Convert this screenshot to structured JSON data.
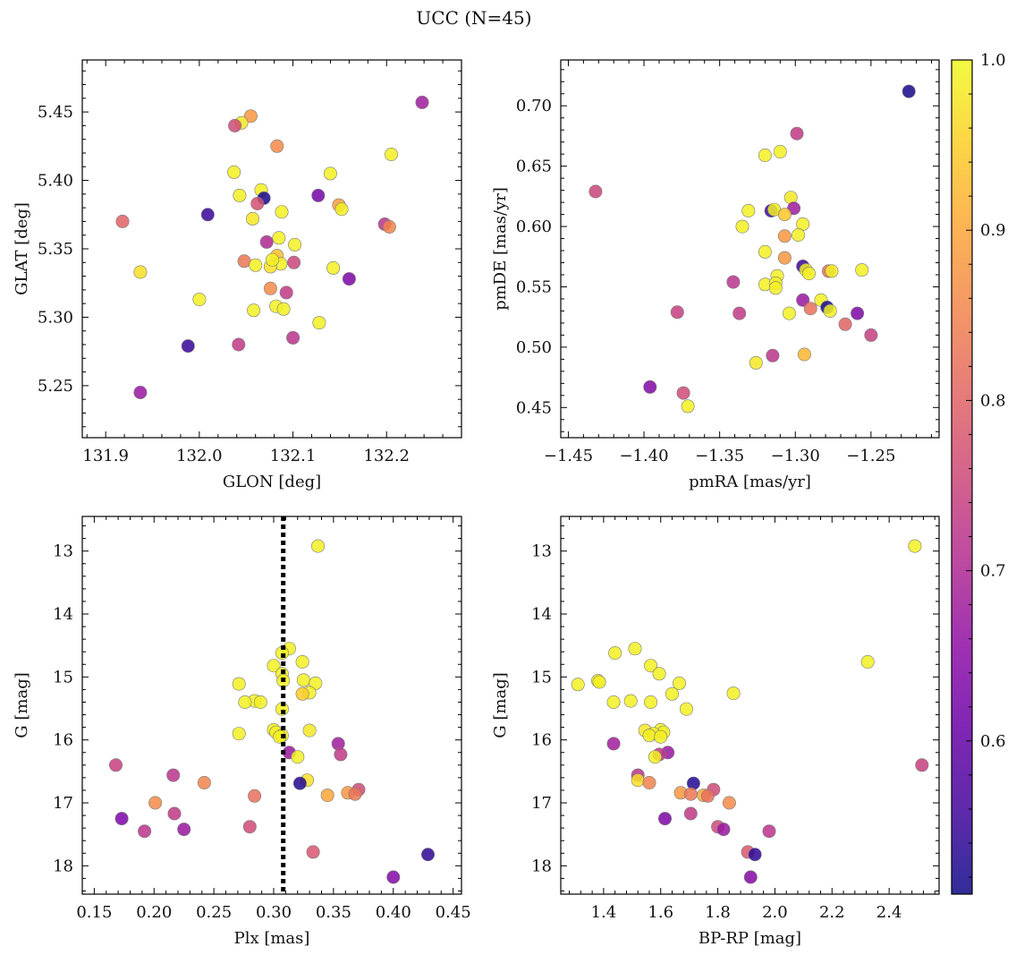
{
  "title": "UCC (N=45)",
  "colorbar": {
    "range": [
      0.51,
      1.0
    ],
    "ticks": [
      0.6,
      0.7,
      0.8,
      0.9,
      1.0
    ],
    "tick_labels": [
      "0.6",
      "0.7",
      "0.8",
      "0.9",
      "1.0"
    ],
    "colormap": "plasma"
  },
  "chart_data": [
    {
      "type": "scatter",
      "xlabel": "GLON [deg]",
      "ylabel": "GLAT [deg]",
      "xlim": [
        131.875,
        132.28
      ],
      "ylim": [
        5.212,
        5.488
      ],
      "xticks": [
        131.9,
        132.0,
        132.1,
        132.2
      ],
      "xtick_labels": [
        "131.9",
        "132.0",
        "132.1",
        "132.2"
      ],
      "yticks": [
        5.25,
        5.3,
        5.35,
        5.4,
        5.45
      ],
      "ytick_labels": [
        "5.25",
        "5.30",
        "5.35",
        "5.40",
        "5.45"
      ],
      "points": [
        {
          "x": 132.238,
          "y": 5.457,
          "c": 0.68
        },
        {
          "x": 132.055,
          "y": 5.447,
          "c": 0.88
        },
        {
          "x": 132.045,
          "y": 5.442,
          "c": 0.98
        },
        {
          "x": 132.038,
          "y": 5.44,
          "c": 0.76
        },
        {
          "x": 132.083,
          "y": 5.425,
          "c": 0.86
        },
        {
          "x": 132.205,
          "y": 5.419,
          "c": 0.99
        },
        {
          "x": 132.037,
          "y": 5.406,
          "c": 0.99
        },
        {
          "x": 132.14,
          "y": 5.405,
          "c": 0.99
        },
        {
          "x": 132.066,
          "y": 5.393,
          "c": 0.99
        },
        {
          "x": 132.043,
          "y": 5.389,
          "c": 0.99
        },
        {
          "x": 132.069,
          "y": 5.387,
          "c": 0.52
        },
        {
          "x": 132.127,
          "y": 5.389,
          "c": 0.62
        },
        {
          "x": 132.149,
          "y": 5.382,
          "c": 0.89
        },
        {
          "x": 132.152,
          "y": 5.379,
          "c": 0.99
        },
        {
          "x": 132.088,
          "y": 5.377,
          "c": 0.99
        },
        {
          "x": 132.009,
          "y": 5.375,
          "c": 0.55
        },
        {
          "x": 132.057,
          "y": 5.372,
          "c": 0.98
        },
        {
          "x": 131.918,
          "y": 5.37,
          "c": 0.8
        },
        {
          "x": 132.198,
          "y": 5.368,
          "c": 0.72
        },
        {
          "x": 132.203,
          "y": 5.366,
          "c": 0.85
        },
        {
          "x": 132.085,
          "y": 5.358,
          "c": 0.99
        },
        {
          "x": 132.072,
          "y": 5.355,
          "c": 0.7
        },
        {
          "x": 132.102,
          "y": 5.353,
          "c": 0.99
        },
        {
          "x": 132.083,
          "y": 5.345,
          "c": 0.93
        },
        {
          "x": 132.048,
          "y": 5.341,
          "c": 0.83
        },
        {
          "x": 132.087,
          "y": 5.339,
          "c": 0.99
        },
        {
          "x": 132.06,
          "y": 5.338,
          "c": 0.99
        },
        {
          "x": 132.076,
          "y": 5.337,
          "c": 0.97
        },
        {
          "x": 132.101,
          "y": 5.34,
          "c": 0.75
        },
        {
          "x": 132.143,
          "y": 5.336,
          "c": 0.99
        },
        {
          "x": 131.937,
          "y": 5.333,
          "c": 0.97
        },
        {
          "x": 132.16,
          "y": 5.328,
          "c": 0.63
        },
        {
          "x": 132.076,
          "y": 5.321,
          "c": 0.86
        },
        {
          "x": 132.093,
          "y": 5.318,
          "c": 0.73
        },
        {
          "x": 132.0,
          "y": 5.313,
          "c": 0.99
        },
        {
          "x": 132.082,
          "y": 5.308,
          "c": 0.99
        },
        {
          "x": 132.058,
          "y": 5.305,
          "c": 0.99
        },
        {
          "x": 132.09,
          "y": 5.306,
          "c": 0.99
        },
        {
          "x": 132.128,
          "y": 5.296,
          "c": 0.99
        },
        {
          "x": 132.1,
          "y": 5.285,
          "c": 0.72
        },
        {
          "x": 131.988,
          "y": 5.279,
          "c": 0.55
        },
        {
          "x": 132.042,
          "y": 5.28,
          "c": 0.73
        },
        {
          "x": 131.937,
          "y": 5.245,
          "c": 0.67
        },
        {
          "x": 132.062,
          "y": 5.383,
          "c": 0.77
        },
        {
          "x": 132.078,
          "y": 5.342,
          "c": 0.99
        }
      ]
    },
    {
      "type": "scatter",
      "xlabel": "pmRA [mas/yr]",
      "ylabel": "pmDE [mas/yr]",
      "xlim": [
        -1.455,
        -1.205
      ],
      "ylim": [
        0.425,
        0.738
      ],
      "xticks": [
        -1.45,
        -1.4,
        -1.35,
        -1.3,
        -1.25
      ],
      "xtick_labels": [
        "−1.45",
        "−1.40",
        "−1.35",
        "−1.30",
        "−1.25"
      ],
      "yticks": [
        0.45,
        0.5,
        0.55,
        0.6,
        0.65,
        0.7
      ],
      "ytick_labels": [
        "0.45",
        "0.50",
        "0.55",
        "0.60",
        "0.65",
        "0.70"
      ],
      "points": [
        {
          "x": -1.225,
          "y": 0.712,
          "c": 0.52
        },
        {
          "x": -1.299,
          "y": 0.677,
          "c": 0.73
        },
        {
          "x": -1.31,
          "y": 0.662,
          "c": 0.99
        },
        {
          "x": -1.32,
          "y": 0.659,
          "c": 0.99
        },
        {
          "x": -1.432,
          "y": 0.629,
          "c": 0.75
        },
        {
          "x": -1.303,
          "y": 0.624,
          "c": 0.98
        },
        {
          "x": -1.301,
          "y": 0.615,
          "c": 0.68
        },
        {
          "x": -1.316,
          "y": 0.613,
          "c": 0.55
        },
        {
          "x": -1.314,
          "y": 0.614,
          "c": 0.99
        },
        {
          "x": -1.331,
          "y": 0.613,
          "c": 0.99
        },
        {
          "x": -1.307,
          "y": 0.61,
          "c": 0.94
        },
        {
          "x": -1.295,
          "y": 0.602,
          "c": 0.99
        },
        {
          "x": -1.335,
          "y": 0.6,
          "c": 0.99
        },
        {
          "x": -1.298,
          "y": 0.593,
          "c": 0.99
        },
        {
          "x": -1.307,
          "y": 0.592,
          "c": 0.88
        },
        {
          "x": -1.32,
          "y": 0.579,
          "c": 0.99
        },
        {
          "x": -1.307,
          "y": 0.574,
          "c": 0.88
        },
        {
          "x": -1.295,
          "y": 0.567,
          "c": 0.55
        },
        {
          "x": -1.293,
          "y": 0.564,
          "c": 0.99
        },
        {
          "x": -1.256,
          "y": 0.564,
          "c": 0.99
        },
        {
          "x": -1.278,
          "y": 0.563,
          "c": 0.82
        },
        {
          "x": -1.276,
          "y": 0.563,
          "c": 0.99
        },
        {
          "x": -1.291,
          "y": 0.561,
          "c": 0.99
        },
        {
          "x": -1.312,
          "y": 0.559,
          "c": 0.99
        },
        {
          "x": -1.341,
          "y": 0.554,
          "c": 0.72
        },
        {
          "x": -1.32,
          "y": 0.552,
          "c": 0.99
        },
        {
          "x": -1.313,
          "y": 0.553,
          "c": 0.99
        },
        {
          "x": -1.313,
          "y": 0.549,
          "c": 0.99
        },
        {
          "x": -1.295,
          "y": 0.539,
          "c": 0.67
        },
        {
          "x": -1.283,
          "y": 0.539,
          "c": 0.99
        },
        {
          "x": -1.279,
          "y": 0.533,
          "c": 0.52
        },
        {
          "x": -1.29,
          "y": 0.532,
          "c": 0.82
        },
        {
          "x": -1.277,
          "y": 0.53,
          "c": 0.99
        },
        {
          "x": -1.378,
          "y": 0.529,
          "c": 0.74
        },
        {
          "x": -1.304,
          "y": 0.528,
          "c": 0.99
        },
        {
          "x": -1.337,
          "y": 0.528,
          "c": 0.73
        },
        {
          "x": -1.259,
          "y": 0.528,
          "c": 0.63
        },
        {
          "x": -1.267,
          "y": 0.519,
          "c": 0.8
        },
        {
          "x": -1.25,
          "y": 0.51,
          "c": 0.74
        },
        {
          "x": -1.294,
          "y": 0.494,
          "c": 0.92
        },
        {
          "x": -1.315,
          "y": 0.493,
          "c": 0.72
        },
        {
          "x": -1.326,
          "y": 0.487,
          "c": 0.98
        },
        {
          "x": -1.396,
          "y": 0.467,
          "c": 0.64
        },
        {
          "x": -1.374,
          "y": 0.462,
          "c": 0.76
        },
        {
          "x": -1.371,
          "y": 0.451,
          "c": 0.99
        }
      ]
    },
    {
      "type": "scatter",
      "xlabel": "Plx [mas]",
      "ylabel": "G [mag]",
      "xlim": [
        0.14,
        0.457
      ],
      "ylim": [
        18.45,
        12.45
      ],
      "y_inverted": true,
      "xticks": [
        0.15,
        0.2,
        0.25,
        0.3,
        0.35,
        0.4,
        0.45
      ],
      "xtick_labels": [
        "0.15",
        "0.20",
        "0.25",
        "0.30",
        "0.35",
        "0.40",
        "0.45"
      ],
      "yticks": [
        13,
        14,
        15,
        16,
        17,
        18
      ],
      "ytick_labels": [
        "13",
        "14",
        "15",
        "16",
        "17",
        "18"
      ],
      "vline": {
        "x": 0.308,
        "style": "dotted",
        "color": "#000000"
      },
      "points": [
        {
          "x": 0.337,
          "y": 12.92,
          "c": 0.99
        },
        {
          "x": 0.313,
          "y": 14.55,
          "c": 0.99
        },
        {
          "x": 0.307,
          "y": 14.62,
          "c": 0.99
        },
        {
          "x": 0.324,
          "y": 14.76,
          "c": 0.99
        },
        {
          "x": 0.3,
          "y": 14.82,
          "c": 0.99
        },
        {
          "x": 0.307,
          "y": 14.95,
          "c": 0.99
        },
        {
          "x": 0.308,
          "y": 15.06,
          "c": 0.99
        },
        {
          "x": 0.325,
          "y": 15.05,
          "c": 0.99
        },
        {
          "x": 0.335,
          "y": 15.1,
          "c": 0.99
        },
        {
          "x": 0.271,
          "y": 15.11,
          "c": 0.99
        },
        {
          "x": 0.33,
          "y": 15.25,
          "c": 0.99
        },
        {
          "x": 0.324,
          "y": 15.27,
          "c": 0.95
        },
        {
          "x": 0.284,
          "y": 15.38,
          "c": 0.99
        },
        {
          "x": 0.276,
          "y": 15.4,
          "c": 0.99
        },
        {
          "x": 0.289,
          "y": 15.4,
          "c": 0.99
        },
        {
          "x": 0.307,
          "y": 15.51,
          "c": 0.99
        },
        {
          "x": 0.33,
          "y": 15.85,
          "c": 0.98
        },
        {
          "x": 0.3,
          "y": 15.84,
          "c": 0.99
        },
        {
          "x": 0.302,
          "y": 15.88,
          "c": 0.99
        },
        {
          "x": 0.271,
          "y": 15.9,
          "c": 0.99
        },
        {
          "x": 0.307,
          "y": 15.93,
          "c": 0.99
        },
        {
          "x": 0.354,
          "y": 16.06,
          "c": 0.68
        },
        {
          "x": 0.313,
          "y": 16.2,
          "c": 0.67
        },
        {
          "x": 0.356,
          "y": 16.23,
          "c": 0.73
        },
        {
          "x": 0.32,
          "y": 16.27,
          "c": 0.99
        },
        {
          "x": 0.168,
          "y": 16.4,
          "c": 0.74
        },
        {
          "x": 0.216,
          "y": 16.56,
          "c": 0.72
        },
        {
          "x": 0.328,
          "y": 16.64,
          "c": 0.97
        },
        {
          "x": 0.242,
          "y": 16.68,
          "c": 0.85
        },
        {
          "x": 0.322,
          "y": 16.69,
          "c": 0.53
        },
        {
          "x": 0.371,
          "y": 16.79,
          "c": 0.76
        },
        {
          "x": 0.362,
          "y": 16.84,
          "c": 0.88
        },
        {
          "x": 0.368,
          "y": 16.86,
          "c": 0.83
        },
        {
          "x": 0.345,
          "y": 16.88,
          "c": 0.9
        },
        {
          "x": 0.284,
          "y": 16.89,
          "c": 0.82
        },
        {
          "x": 0.201,
          "y": 17.0,
          "c": 0.86
        },
        {
          "x": 0.217,
          "y": 17.17,
          "c": 0.73
        },
        {
          "x": 0.173,
          "y": 17.25,
          "c": 0.63
        },
        {
          "x": 0.28,
          "y": 17.38,
          "c": 0.76
        },
        {
          "x": 0.225,
          "y": 17.42,
          "c": 0.67
        },
        {
          "x": 0.192,
          "y": 17.45,
          "c": 0.72
        },
        {
          "x": 0.333,
          "y": 17.78,
          "c": 0.78
        },
        {
          "x": 0.429,
          "y": 17.82,
          "c": 0.54
        },
        {
          "x": 0.4,
          "y": 18.18,
          "c": 0.64
        },
        {
          "x": 0.305,
          "y": 15.95,
          "c": 0.99
        }
      ]
    },
    {
      "type": "scatter",
      "xlabel": "BP-RP [mag]",
      "ylabel": "G [mag]",
      "xlim": [
        1.25,
        2.575
      ],
      "ylim": [
        18.45,
        12.45
      ],
      "y_inverted": true,
      "xticks": [
        1.4,
        1.6,
        1.8,
        2.0,
        2.2,
        2.4
      ],
      "xtick_labels": [
        "1.4",
        "1.6",
        "1.8",
        "2.0",
        "2.2",
        "2.4"
      ],
      "yticks": [
        13,
        14,
        15,
        16,
        17,
        18
      ],
      "ytick_labels": [
        "13",
        "14",
        "15",
        "16",
        "17",
        "18"
      ],
      "points": [
        {
          "x": 2.49,
          "y": 12.92,
          "c": 0.99
        },
        {
          "x": 1.51,
          "y": 14.55,
          "c": 0.99
        },
        {
          "x": 1.44,
          "y": 14.62,
          "c": 0.99
        },
        {
          "x": 2.325,
          "y": 14.76,
          "c": 0.99
        },
        {
          "x": 1.565,
          "y": 14.82,
          "c": 0.99
        },
        {
          "x": 1.595,
          "y": 14.95,
          "c": 0.99
        },
        {
          "x": 1.38,
          "y": 15.06,
          "c": 0.99
        },
        {
          "x": 1.385,
          "y": 15.08,
          "c": 0.99
        },
        {
          "x": 1.665,
          "y": 15.1,
          "c": 0.99
        },
        {
          "x": 1.31,
          "y": 15.12,
          "c": 0.99
        },
        {
          "x": 1.855,
          "y": 15.26,
          "c": 0.99
        },
        {
          "x": 1.64,
          "y": 15.27,
          "c": 0.99
        },
        {
          "x": 1.495,
          "y": 15.38,
          "c": 0.99
        },
        {
          "x": 1.435,
          "y": 15.4,
          "c": 0.99
        },
        {
          "x": 1.565,
          "y": 15.4,
          "c": 0.99
        },
        {
          "x": 1.69,
          "y": 15.51,
          "c": 0.99
        },
        {
          "x": 1.545,
          "y": 15.85,
          "c": 0.98
        },
        {
          "x": 1.6,
          "y": 15.84,
          "c": 0.99
        },
        {
          "x": 1.61,
          "y": 15.88,
          "c": 0.99
        },
        {
          "x": 1.575,
          "y": 15.9,
          "c": 0.99
        },
        {
          "x": 1.56,
          "y": 15.93,
          "c": 0.99
        },
        {
          "x": 1.435,
          "y": 16.06,
          "c": 0.68
        },
        {
          "x": 1.625,
          "y": 16.2,
          "c": 0.67
        },
        {
          "x": 1.595,
          "y": 16.23,
          "c": 0.73
        },
        {
          "x": 1.58,
          "y": 16.27,
          "c": 0.99
        },
        {
          "x": 2.515,
          "y": 16.4,
          "c": 0.74
        },
        {
          "x": 1.52,
          "y": 16.56,
          "c": 0.72
        },
        {
          "x": 1.52,
          "y": 16.64,
          "c": 0.97
        },
        {
          "x": 1.56,
          "y": 16.68,
          "c": 0.85
        },
        {
          "x": 1.715,
          "y": 16.69,
          "c": 0.53
        },
        {
          "x": 1.785,
          "y": 16.79,
          "c": 0.76
        },
        {
          "x": 1.67,
          "y": 16.84,
          "c": 0.88
        },
        {
          "x": 1.705,
          "y": 16.86,
          "c": 0.83
        },
        {
          "x": 1.75,
          "y": 16.88,
          "c": 0.9
        },
        {
          "x": 1.765,
          "y": 16.89,
          "c": 0.82
        },
        {
          "x": 1.84,
          "y": 17.0,
          "c": 0.86
        },
        {
          "x": 1.705,
          "y": 17.17,
          "c": 0.73
        },
        {
          "x": 1.615,
          "y": 17.25,
          "c": 0.63
        },
        {
          "x": 1.8,
          "y": 17.38,
          "c": 0.76
        },
        {
          "x": 1.82,
          "y": 17.42,
          "c": 0.67
        },
        {
          "x": 1.98,
          "y": 17.45,
          "c": 0.72
        },
        {
          "x": 1.905,
          "y": 17.78,
          "c": 0.78
        },
        {
          "x": 1.93,
          "y": 17.82,
          "c": 0.54
        },
        {
          "x": 1.915,
          "y": 18.18,
          "c": 0.64
        },
        {
          "x": 1.6,
          "y": 15.95,
          "c": 0.99
        }
      ]
    }
  ]
}
